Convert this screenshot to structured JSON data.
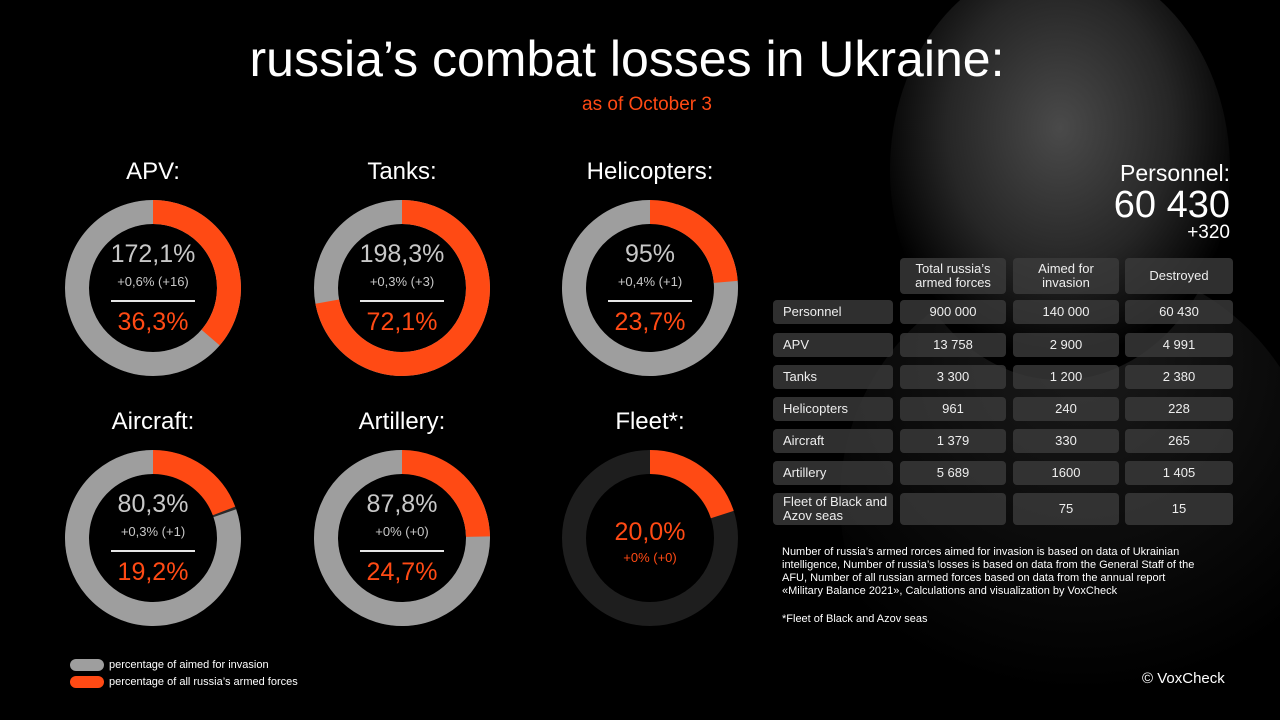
{
  "title": "russia’s combat losses in Ukraine:",
  "subtitle": "as of October 3",
  "colors": {
    "grey": "#9e9e9e",
    "orange": "#ff4a14",
    "dark": "#2a2a2a"
  },
  "chart_data": {
    "type": "donut",
    "series_meaning": {
      "grey": "percentage of aimed for invasion",
      "orange": "percentage of all russia’s armed forces"
    },
    "charts": [
      {
        "label": "APV:",
        "aimed_pct": 172.1,
        "aimed_text": "172,1%",
        "aimed_delta": "+0,6% (+16)",
        "all_pct": 36.3,
        "all_text": "36,3%"
      },
      {
        "label": "Tanks:",
        "aimed_pct": 198.3,
        "aimed_text": "198,3%",
        "aimed_delta": "+0,3% (+3)",
        "all_pct": 72.1,
        "all_text": "72,1%"
      },
      {
        "label": "Helicopters:",
        "aimed_pct": 95,
        "aimed_text": "95%",
        "aimed_delta": "+0,4% (+1)",
        "all_pct": 23.7,
        "all_text": "23,7%"
      },
      {
        "label": "Aircraft:",
        "aimed_pct": 80.3,
        "aimed_text": "80,3%",
        "aimed_delta": "+0,3% (+1)",
        "all_pct": 19.2,
        "all_text": "19,2%"
      },
      {
        "label": "Artillery:",
        "aimed_pct": 87.8,
        "aimed_text": "87,8%",
        "aimed_delta": "+0% (+0)",
        "all_pct": 24.7,
        "all_text": "24,7%"
      },
      {
        "label": "Fleet*:",
        "aimed_pct": null,
        "all_pct": 20.0,
        "all_text": "20,0%",
        "all_delta": "+0% (+0)"
      }
    ]
  },
  "personnel": {
    "label": "Personnel:",
    "value": "60 430",
    "delta": "+320"
  },
  "table": {
    "headers": [
      "Total russia’s armed forces",
      "Aimed for invasion",
      "Destroyed"
    ],
    "rows": [
      {
        "name": "Personnel",
        "total": "900 000",
        "aimed": "140 000",
        "destroyed": "60 430"
      },
      {
        "name": "APV",
        "total": "13 758",
        "aimed": "2 900",
        "destroyed": "4 991"
      },
      {
        "name": "Tanks",
        "total": "3 300",
        "aimed": "1 200",
        "destroyed": "2 380"
      },
      {
        "name": "Helicopters",
        "total": "961",
        "aimed": "240",
        "destroyed": "228"
      },
      {
        "name": "Aircraft",
        "total": "1 379",
        "aimed": "330",
        "destroyed": "265"
      },
      {
        "name": "Artillery",
        "total": "5 689",
        "aimed": "1600",
        "destroyed": "1 405"
      },
      {
        "name": "Fleet of Black and Azov seas",
        "total": "",
        "aimed": "75",
        "destroyed": "15"
      }
    ]
  },
  "note": "Number of russia’s armed rorces aimed for invasion  is based on data of Ukrainian intelligence, Number of russia’s losses is based on data from the General Staff of the AFU, Number of all russian armed forces based on  data from the annual report «Military Balance 2021», Calculations and visualization by VoxCheck",
  "footnote": "*Fleet of Black and Azov seas",
  "legend": [
    {
      "label": "percentage of aimed for invasion",
      "color": "#9e9e9e"
    },
    {
      "label": "percentage of all russia’s armed forces",
      "color": "#ff4a14"
    }
  ],
  "copyright": "© VoxCheck"
}
